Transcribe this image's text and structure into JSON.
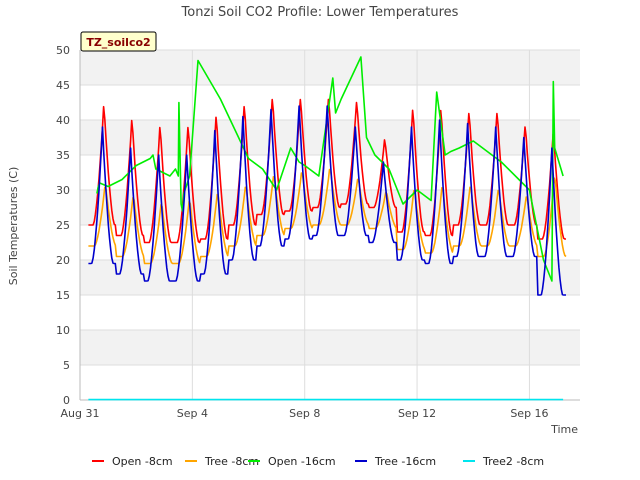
{
  "chart_data": {
    "type": "line",
    "title": "Tonzi Soil CO2 Profile: Lower Temperatures",
    "ylabel": "Soil Temperatures (C)",
    "xlabel": "Time",
    "badge": "TZ_soilco2",
    "ylim": [
      0,
      50
    ],
    "xlim": [
      0,
      17.8
    ],
    "yticks": [
      0,
      5,
      10,
      15,
      20,
      25,
      30,
      35,
      40,
      45,
      50
    ],
    "xticks": [
      {
        "pos": 0,
        "label": "Aug 31"
      },
      {
        "pos": 4,
        "label": "Sep 4"
      },
      {
        "pos": 8,
        "label": "Sep 8"
      },
      {
        "pos": 12,
        "label": "Sep 12"
      },
      {
        "pos": 16,
        "label": "Sep 16"
      }
    ],
    "grid": true,
    "legend_position": "bottom",
    "colors": {
      "bands": "#f2f2f2",
      "grid": "#dddddd",
      "axis": "#bbbbbb",
      "badge_fill": "#ffffcc"
    },
    "series": [
      {
        "name": "Open -8cm",
        "color": "#ff0000",
        "daily": {
          "start": 0.3,
          "days": 17,
          "phase": 0.55,
          "min": [
            25.0,
            23.5,
            22.5,
            22.5,
            23.0,
            25.0,
            26.5,
            27.0,
            27.5,
            28.0,
            27.5,
            24.0,
            23.5,
            25.0,
            25.0,
            25.0,
            23.0
          ],
          "max": [
            42.5,
            40.5,
            39.5,
            39.5,
            41.0,
            42.5,
            43.5,
            43.5,
            43.5,
            43.0,
            37.5,
            42.0,
            42.0,
            41.5,
            41.5,
            39.5,
            38.5
          ]
        }
      },
      {
        "name": "Tree -8cm",
        "color": "#ffa500",
        "daily": {
          "start": 0.3,
          "days": 17,
          "phase": 0.6,
          "min": [
            22.0,
            20.5,
            19.5,
            19.5,
            20.5,
            22.0,
            23.5,
            24.5,
            25.0,
            25.0,
            24.5,
            21.5,
            21.0,
            22.0,
            22.0,
            22.0,
            20.5
          ],
          "max": [
            31.0,
            29.5,
            28.5,
            29.0,
            30.0,
            31.0,
            32.5,
            33.0,
            33.5,
            32.0,
            30.0,
            30.5,
            31.0,
            31.0,
            30.5,
            29.5,
            32.5
          ]
        }
      },
      {
        "name": "Open -16cm",
        "color": "#00ee00",
        "x": [
          0.6,
          0.65,
          0.7,
          1.0,
          1.5,
          2.0,
          2.5,
          2.6,
          2.7,
          3.2,
          3.4,
          3.5,
          3.52,
          3.6,
          3.65,
          3.7,
          3.9,
          4.2,
          5.0,
          6.0,
          6.5,
          7.0,
          7.5,
          7.8,
          8.0,
          8.5,
          9.0,
          9.1,
          9.3,
          10.0,
          10.2,
          10.5,
          11.0,
          11.5,
          12.0,
          12.5,
          12.7,
          13.0,
          13.2,
          13.5,
          14.0,
          15.0,
          16.0,
          16.5,
          16.8,
          16.85,
          16.9,
          17.2
        ],
        "y": [
          29.5,
          30.5,
          31.0,
          30.5,
          31.5,
          33.5,
          34.5,
          35.0,
          33.0,
          32.0,
          33.0,
          32.0,
          42.5,
          28.0,
          27.0,
          29.5,
          32.0,
          48.5,
          43.0,
          34.5,
          33.0,
          30.0,
          36.0,
          34.0,
          33.5,
          32.0,
          46.0,
          41.0,
          43.0,
          49.0,
          37.5,
          35.0,
          33.0,
          28.0,
          30.0,
          28.5,
          44.0,
          35.0,
          35.5,
          36.0,
          37.0,
          34.0,
          30.0,
          20.0,
          17.0,
          45.5,
          36.0,
          32.0
        ]
      },
      {
        "name": "Tree -16cm",
        "color": "#0000cc",
        "daily": {
          "start": 0.3,
          "days": 17,
          "phase": 0.5,
          "min": [
            19.5,
            18.0,
            17.0,
            17.0,
            18.0,
            20.0,
            22.0,
            23.0,
            23.5,
            23.5,
            22.5,
            20.0,
            19.5,
            20.5,
            20.5,
            20.5,
            15.0
          ],
          "max": [
            39.0,
            36.0,
            35.0,
            35.0,
            38.5,
            40.5,
            41.5,
            42.0,
            42.0,
            39.0,
            34.0,
            39.0,
            40.0,
            39.5,
            39.0,
            37.5,
            36.0
          ]
        }
      },
      {
        "name": "Tree2 -8cm",
        "color": "#00e5ee",
        "x": [
          0.3,
          17.2
        ],
        "y": [
          0.05,
          0.05
        ]
      }
    ]
  }
}
